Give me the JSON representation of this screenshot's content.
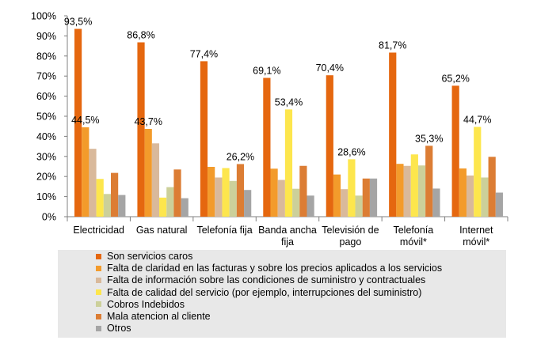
{
  "chart_data": {
    "type": "bar",
    "categories": [
      "Electricidad",
      "Gas natural",
      "Telefonía fija",
      "Banda ancha fija",
      "Televisión de pago",
      "Telefonía móvil*",
      "Internet móvil*"
    ],
    "category_labels": [
      [
        "Electricidad"
      ],
      [
        "Gas natural"
      ],
      [
        "Telefonía fija"
      ],
      [
        "Banda ancha",
        "fija"
      ],
      [
        "Televisión de",
        "pago"
      ],
      [
        "Telefonía",
        "móvil*"
      ],
      [
        "Internet",
        "móvil*"
      ]
    ],
    "ylim": [
      0,
      100
    ],
    "yticks": [
      "0%",
      "10%",
      "20%",
      "30%",
      "40%",
      "50%",
      "60%",
      "70%",
      "80%",
      "90%",
      "100%"
    ],
    "legend_position": "bottom",
    "grid": false,
    "series": [
      {
        "name": "Son servicios caros",
        "color": "#e5670f",
        "values": [
          93.5,
          86.8,
          77.4,
          69.1,
          70.4,
          81.7,
          65.2
        ]
      },
      {
        "name": "Falta de claridad en las facturas y sobre los precios aplicados a los servicios",
        "color": "#f39b2b",
        "values": [
          44.5,
          43.7,
          24.8,
          23.9,
          21.0,
          26.3,
          24.0
        ]
      },
      {
        "name": "Falta de información sobre las condiciones de suministro y contractuales",
        "color": "#d9b99b",
        "values": [
          33.8,
          36.5,
          19.5,
          18.3,
          13.7,
          25.3,
          20.5
        ]
      },
      {
        "name": "Falta de calidad del servicio (por ejemplo, interrupciones del suministro)",
        "color": "#fde64d",
        "values": [
          18.8,
          9.5,
          24.2,
          53.4,
          28.6,
          31.0,
          44.7
        ]
      },
      {
        "name": "Cobros Indebidos",
        "color": "#ccd09a",
        "values": [
          11.3,
          14.7,
          17.8,
          13.9,
          10.5,
          25.5,
          19.5
        ]
      },
      {
        "name": "Mala atencion al cliente",
        "color": "#dc7d34",
        "values": [
          21.8,
          23.5,
          26.2,
          25.3,
          19.0,
          35.3,
          29.8
        ]
      },
      {
        "name": "Otros",
        "color": "#a5a5a5",
        "values": [
          10.8,
          9.2,
          13.3,
          10.5,
          19.0,
          14.0,
          12.0
        ]
      }
    ],
    "data_labels": [
      {
        "series": 0,
        "category": 0,
        "text": "93,5%"
      },
      {
        "series": 1,
        "category": 0,
        "text": "44,5%"
      },
      {
        "series": 0,
        "category": 1,
        "text": "86,8%"
      },
      {
        "series": 1,
        "category": 1,
        "text": "43,7%"
      },
      {
        "series": 0,
        "category": 2,
        "text": "77,4%"
      },
      {
        "series": 5,
        "category": 2,
        "text": "26,2%"
      },
      {
        "series": 0,
        "category": 3,
        "text": "69,1%"
      },
      {
        "series": 3,
        "category": 3,
        "text": "53,4%"
      },
      {
        "series": 0,
        "category": 4,
        "text": "70,4%"
      },
      {
        "series": 3,
        "category": 4,
        "text": "28,6%"
      },
      {
        "series": 0,
        "category": 5,
        "text": "81,7%"
      },
      {
        "series": 5,
        "category": 5,
        "text": "35,3%"
      },
      {
        "series": 0,
        "category": 6,
        "text": "65,2%"
      },
      {
        "series": 3,
        "category": 6,
        "text": "44,7%"
      }
    ]
  }
}
